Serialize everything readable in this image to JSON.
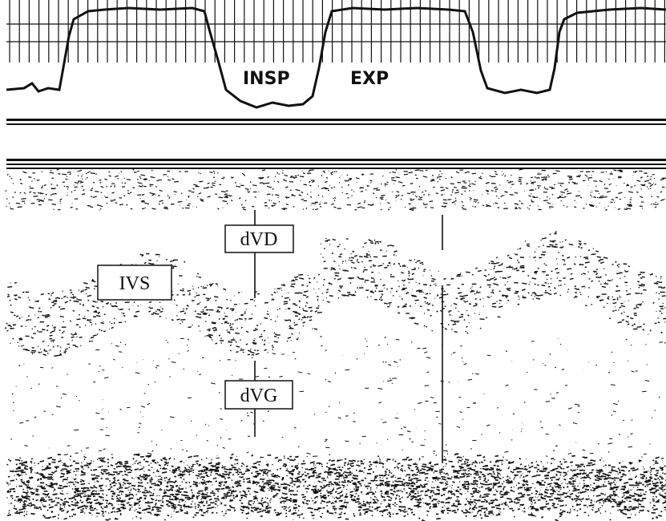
{
  "labels": {
    "insp": "INSP",
    "exp": "EXP",
    "dvd": "dVD",
    "ivs": "IVS",
    "dvg": "dVG"
  }
}
